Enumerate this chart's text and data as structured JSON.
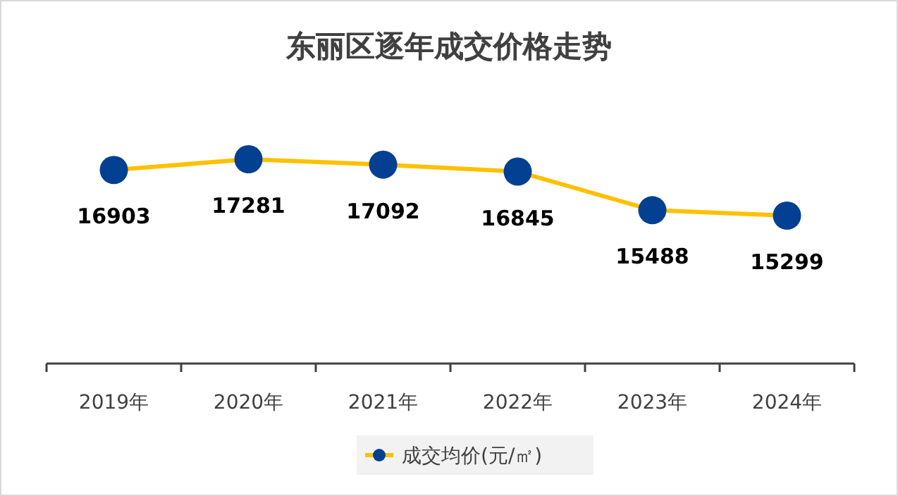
{
  "chart_data": {
    "type": "line",
    "title": "东丽区逐年成交价格走势",
    "categories": [
      "2019年",
      "2020年",
      "2021年",
      "2022年",
      "2023年",
      "2024年"
    ],
    "series": [
      {
        "name": "成交均价(元/㎡)",
        "color": "#ffc000",
        "colors": [
          "#034091",
          "#034091",
          "#034091",
          "#034091",
          "#034091",
          "#034091"
        ],
        "values": [
          16903,
          17281,
          17092,
          16845,
          15488,
          15299
        ]
      }
    ],
    "marker": "circle",
    "data_labels": true,
    "legend": "bottom"
  }
}
